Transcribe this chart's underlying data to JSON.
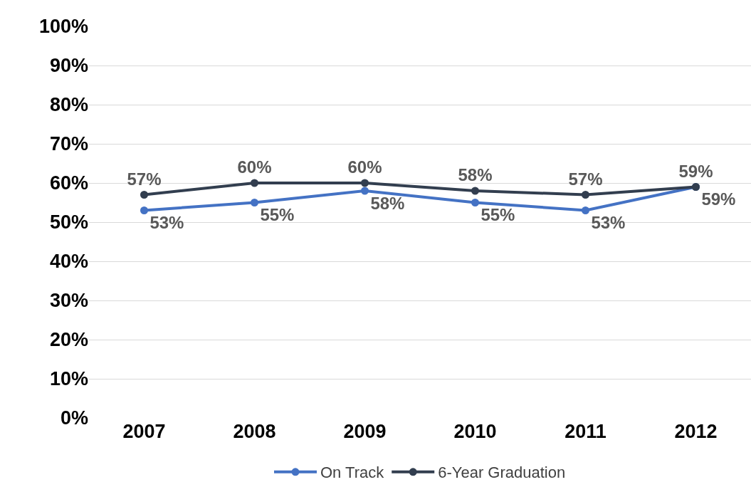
{
  "chart_data": {
    "type": "line",
    "categories": [
      "2007",
      "2008",
      "2009",
      "2010",
      "2011",
      "2012"
    ],
    "series": [
      {
        "name": "On Track",
        "color": "#4472c4",
        "values": [
          53,
          55,
          58,
          55,
          53,
          59
        ],
        "value_labels": [
          "53%",
          "55%",
          "58%",
          "55%",
          "53%",
          "59%"
        ]
      },
      {
        "name": "6-Year Graduation",
        "color": "#323e4f",
        "values": [
          57,
          60,
          60,
          58,
          57,
          59
        ],
        "value_labels": [
          "57%",
          "60%",
          "60%",
          "58%",
          "57%",
          "59%"
        ]
      }
    ],
    "ylim": [
      0,
      100
    ],
    "yticks": [
      {
        "value": 0,
        "label": "0%"
      },
      {
        "value": 10,
        "label": "10%"
      },
      {
        "value": 20,
        "label": "20%"
      },
      {
        "value": 30,
        "label": "30%"
      },
      {
        "value": 40,
        "label": "40%"
      },
      {
        "value": 50,
        "label": "50%"
      },
      {
        "value": 60,
        "label": "60%"
      },
      {
        "value": 70,
        "label": "70%"
      },
      {
        "value": 80,
        "label": "80%"
      },
      {
        "value": 90,
        "label": "90%"
      },
      {
        "value": 100,
        "label": "100%"
      }
    ],
    "grid": "y",
    "legend": "bottom",
    "marker": "circle",
    "line_style": "solid"
  }
}
